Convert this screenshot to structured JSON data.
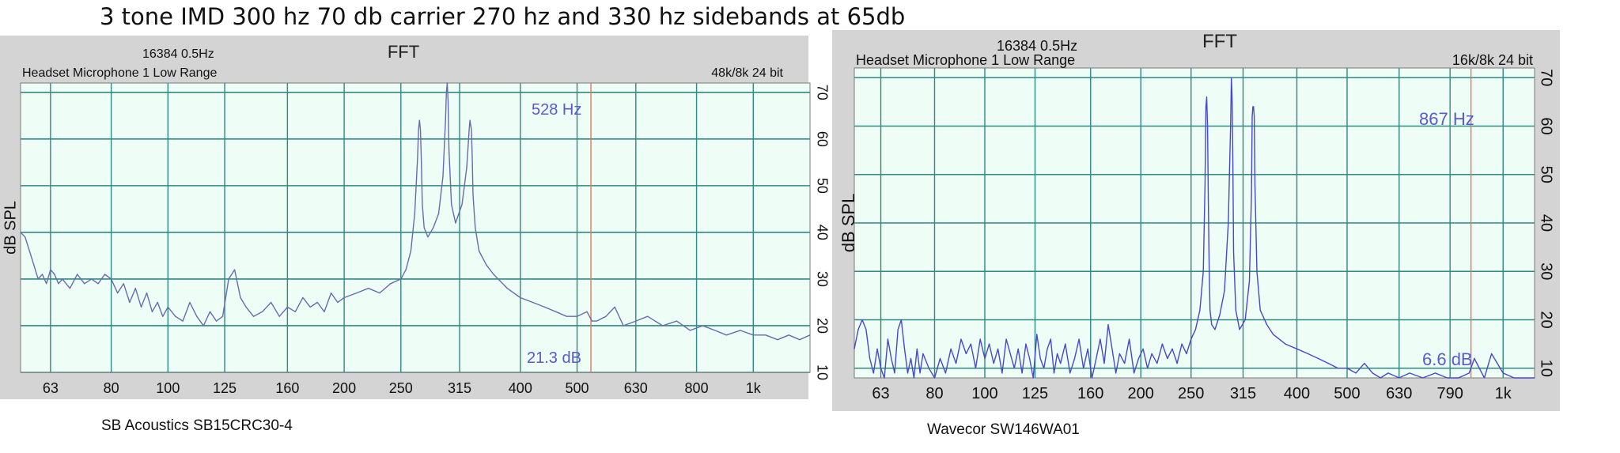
{
  "title": "3 tone IMD 300 hz 70 db carrier 270 hz and 330 hz sidebands at 65db",
  "chart_data": [
    {
      "type": "line",
      "title": "FFT",
      "fft_info": "16384  0.5Hz",
      "channel": "Headset Microphone 1 Low Range",
      "format": "48k/8k 24 bit",
      "ylabel": "dB SPL",
      "caption": "SB Acoustics SB15CRC30-4",
      "cursor_freq_label": "528 Hz",
      "cursor_level_label": "21.3 dB",
      "cursor_freq": 528,
      "x_scale": "log",
      "xlim": [
        56,
        1250
      ],
      "ylim": [
        10,
        72
      ],
      "grid": true,
      "x_ticks": [
        63,
        80,
        100,
        125,
        160,
        200,
        250,
        315,
        400,
        500,
        630,
        800,
        1000
      ],
      "x_tick_labels": [
        "63",
        "80",
        "100",
        "125",
        "160",
        "200",
        "250",
        "315",
        "400",
        "500",
        "630",
        "800",
        "1k"
      ],
      "y_ticks": [
        10,
        20,
        30,
        40,
        50,
        60,
        70
      ],
      "y_tick_labels": [
        "10",
        "20",
        "30",
        "40",
        "50",
        "60",
        "70"
      ],
      "series": [
        {
          "color": "#6a6ab0",
          "x": [
            56,
            57,
            58,
            59,
            60,
            61,
            62,
            63,
            64,
            65,
            66,
            68,
            70,
            72,
            74,
            76,
            78,
            80,
            82,
            84,
            86,
            88,
            90,
            92,
            94,
            96,
            98,
            100,
            103,
            106,
            109,
            112,
            115,
            118,
            121,
            124,
            127,
            130,
            133,
            136,
            140,
            145,
            150,
            155,
            160,
            165,
            170,
            175,
            180,
            185,
            190,
            195,
            200,
            210,
            220,
            230,
            240,
            250,
            255,
            260,
            264,
            267,
            268,
            269,
            270,
            271,
            272,
            274,
            278,
            284,
            290,
            295,
            298,
            299,
            300,
            301,
            302,
            305,
            310,
            318,
            324,
            327,
            328,
            329,
            330,
            331,
            332,
            335,
            340,
            350,
            360,
            380,
            400,
            420,
            440,
            460,
            480,
            500,
            520,
            530,
            540,
            560,
            580,
            600,
            630,
            660,
            700,
            740,
            780,
            820,
            860,
            900,
            950,
            1000,
            1050,
            1100,
            1150,
            1200,
            1250
          ],
          "y": [
            40,
            39,
            36,
            33,
            30,
            31,
            29,
            32,
            31,
            29,
            30,
            28,
            31,
            29,
            30,
            29,
            31,
            30,
            27,
            29,
            25,
            28,
            24,
            27,
            23,
            25,
            22,
            24,
            22,
            21,
            25,
            22,
            20,
            23,
            21,
            22,
            30,
            32,
            26,
            24,
            22,
            23,
            25,
            22,
            24,
            23,
            26,
            24,
            25,
            23,
            27,
            25,
            26,
            27,
            28,
            27,
            29,
            30,
            32,
            36,
            44,
            56,
            62,
            64,
            62,
            55,
            46,
            41,
            39,
            41,
            44,
            52,
            64,
            70,
            72,
            68,
            58,
            46,
            42,
            46,
            54,
            62,
            64,
            63,
            62,
            56,
            48,
            41,
            36,
            33,
            31,
            28,
            26,
            25,
            24,
            23,
            22,
            22,
            23,
            21,
            21,
            22,
            24,
            20,
            21,
            22,
            20,
            21,
            19,
            20,
            19,
            18,
            19,
            18,
            18,
            17,
            18,
            17,
            18
          ]
        }
      ]
    },
    {
      "type": "line",
      "title": "FFT",
      "fft_info": "16384  0.5Hz",
      "channel": "Headset Microphone 1 Low Range",
      "format": "16k/8k 24 bit",
      "ylabel": "dB SPL",
      "caption": "Wavecor SW146WA01",
      "cursor_freq_label": "867 Hz",
      "cursor_level_label": "6.6 dB",
      "cursor_freq": 867,
      "x_scale": "log",
      "xlim": [
        56,
        1150
      ],
      "ylim": [
        8,
        72
      ],
      "grid": true,
      "x_ticks": [
        63,
        80,
        100,
        125,
        160,
        200,
        250,
        315,
        400,
        500,
        630,
        790,
        1000
      ],
      "x_tick_labels": [
        "63",
        "80",
        "100",
        "125",
        "160",
        "200",
        "250",
        "315",
        "400",
        "500",
        "630",
        "790",
        "1k"
      ],
      "y_ticks": [
        10,
        20,
        30,
        40,
        50,
        60,
        70
      ],
      "y_tick_labels": [
        "10",
        "20",
        "30",
        "40",
        "50",
        "60",
        "70"
      ],
      "series": [
        {
          "color": "#4848cc",
          "x": [
            56,
            57,
            58,
            59,
            60,
            61,
            62,
            63,
            64,
            65,
            66,
            67,
            68,
            69,
            70,
            71,
            72,
            73,
            74,
            75,
            76,
            78,
            80,
            82,
            84,
            86,
            88,
            90,
            92,
            94,
            96,
            98,
            100,
            102,
            104,
            106,
            108,
            110,
            112,
            114,
            116,
            118,
            120,
            122,
            124,
            126,
            128,
            130,
            132,
            134,
            136,
            138,
            140,
            143,
            146,
            149,
            152,
            155,
            158,
            161,
            164,
            167,
            170,
            173,
            176,
            179,
            182,
            186,
            190,
            194,
            198,
            202,
            206,
            210,
            215,
            220,
            225,
            230,
            235,
            240,
            245,
            250,
            255,
            260,
            264,
            266,
            267,
            268,
            269,
            270,
            271,
            272,
            274,
            278,
            284,
            290,
            295,
            298,
            299,
            300,
            301,
            302,
            305,
            310,
            318,
            324,
            327,
            328,
            329,
            330,
            331,
            332,
            335,
            340,
            350,
            360,
            380,
            400,
            420,
            440,
            460,
            480,
            500,
            520,
            540,
            560,
            580,
            600,
            630,
            660,
            700,
            740,
            780,
            820,
            860,
            880,
            900,
            920,
            950,
            1000,
            1050,
            1100,
            1150
          ],
          "y": [
            14,
            18,
            20,
            18,
            12,
            9,
            14,
            10,
            8,
            16,
            12,
            9,
            18,
            20,
            14,
            9,
            12,
            8,
            14,
            9,
            13,
            10,
            8,
            12,
            9,
            14,
            11,
            16,
            13,
            15,
            10,
            16,
            12,
            15,
            11,
            14,
            9,
            16,
            13,
            10,
            14,
            9,
            15,
            12,
            8,
            17,
            12,
            10,
            14,
            16,
            9,
            13,
            11,
            15,
            9,
            12,
            16,
            10,
            14,
            8,
            12,
            16,
            11,
            19,
            14,
            9,
            13,
            11,
            16,
            9,
            12,
            14,
            10,
            13,
            11,
            15,
            12,
            14,
            11,
            15,
            13,
            16,
            18,
            22,
            30,
            48,
            64,
            66,
            60,
            44,
            30,
            22,
            19,
            18,
            21,
            26,
            40,
            60,
            70,
            66,
            52,
            34,
            22,
            18,
            20,
            28,
            46,
            62,
            64,
            64,
            62,
            48,
            30,
            22,
            19,
            17,
            15,
            14,
            13,
            12,
            11,
            10,
            10,
            9,
            11,
            9,
            8,
            9,
            8,
            9,
            8,
            9,
            8,
            8,
            9,
            12,
            10,
            8,
            13,
            9,
            8,
            8,
            8
          ]
        }
      ]
    }
  ]
}
